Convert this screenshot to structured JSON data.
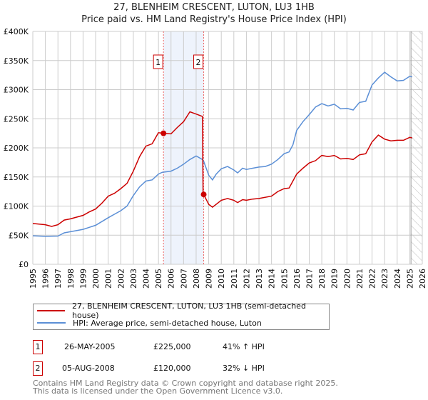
{
  "chart_data": {
    "type": "line",
    "title": "27, BLENHEIM CRESCENT, LUTON, LU3 1HB",
    "subtitle": "Price paid vs. HM Land Registry's House Price Index (HPI)",
    "xlim": [
      1995,
      2026
    ],
    "ylim": [
      0,
      400000
    ],
    "y_ticks": [
      {
        "v": 0,
        "label": "£0"
      },
      {
        "v": 50000,
        "label": "£50K"
      },
      {
        "v": 100000,
        "label": "£100K"
      },
      {
        "v": 150000,
        "label": "£150K"
      },
      {
        "v": 200000,
        "label": "£200K"
      },
      {
        "v": 250000,
        "label": "£250K"
      },
      {
        "v": 300000,
        "label": "£300K"
      },
      {
        "v": 350000,
        "label": "£350K"
      },
      {
        "v": 400000,
        "label": "£400K"
      }
    ],
    "x_ticks": [
      "1995",
      "1996",
      "1997",
      "1998",
      "1999",
      "2000",
      "2001",
      "2002",
      "2003",
      "2004",
      "2005",
      "2006",
      "2007",
      "2008",
      "2009",
      "2010",
      "2011",
      "2012",
      "2013",
      "2014",
      "2015",
      "2016",
      "2017",
      "2018",
      "2019",
      "2020",
      "2021",
      "2022",
      "2023",
      "2024",
      "2025",
      "2026"
    ],
    "grid": true,
    "shaded_range": [
      2005.4,
      2008.6
    ],
    "forecast_hatch_from": 2025.1,
    "series": [
      {
        "name": "27, BLENHEIM CRESCENT, LUTON, LU3 1HB (semi-detached house)",
        "color": "#cc0000",
        "x": [
          1995,
          1996,
          1996.5,
          1997,
          1997.5,
          1998,
          1999,
          1999.5,
          2000,
          2000.5,
          2001,
          2001.5,
          2002,
          2002.5,
          2003,
          2003.5,
          2004,
          2004.5,
          2005,
          2005.4,
          2006,
          2006.5,
          2007,
          2007.5,
          2008,
          2008.5,
          2008.55,
          2008.6,
          2009,
          2009.3,
          2010,
          2010.5,
          2011,
          2011.3,
          2011.7,
          2012,
          2012.5,
          2013,
          2014,
          2014.5,
          2015,
          2015.4,
          2016,
          2016.5,
          2017,
          2017.5,
          2018,
          2018.5,
          2019,
          2019.5,
          2020,
          2020.5,
          2021,
          2021.5,
          2022,
          2022.5,
          2023,
          2023.5,
          2024,
          2024.5,
          2025,
          2025.2
        ],
        "y": [
          70000,
          68000,
          65000,
          68000,
          76000,
          78000,
          84000,
          90000,
          95000,
          105000,
          117000,
          122000,
          130000,
          139000,
          160000,
          185000,
          203000,
          207000,
          226000,
          225000,
          224000,
          235000,
          245000,
          262000,
          258000,
          254000,
          120000,
          120000,
          103000,
          98000,
          110000,
          113000,
          110000,
          106000,
          111000,
          110000,
          112000,
          113000,
          117000,
          125000,
          130000,
          131000,
          155000,
          165000,
          174000,
          178000,
          187000,
          185000,
          187000,
          181000,
          182000,
          180000,
          188000,
          190000,
          210000,
          222000,
          215000,
          212000,
          213000,
          213000,
          218000,
          217000
        ]
      },
      {
        "name": "HPI: Average price, semi-detached house, Luton",
        "color": "#5b8fd6",
        "x": [
          1995,
          1996,
          1997,
          1997.5,
          1998,
          1999,
          2000,
          2001,
          2001.5,
          2002,
          2002.5,
          2003,
          2003.5,
          2004,
          2004.5,
          2005,
          2005.3,
          2006,
          2006.5,
          2007,
          2007.5,
          2008,
          2008.5,
          2008.6,
          2009,
          2009.3,
          2009.6,
          2010,
          2010.5,
          2011,
          2011.3,
          2011.7,
          2012,
          2012.5,
          2013,
          2013.5,
          2014,
          2014.5,
          2015,
          2015.4,
          2015.7,
          2016,
          2016.5,
          2017,
          2017.5,
          2018,
          2018.5,
          2019,
          2019.5,
          2020,
          2020.5,
          2021,
          2021.5,
          2022,
          2022.5,
          2023,
          2023.5,
          2024,
          2024.5,
          2025,
          2025.2
        ],
        "y": [
          49000,
          48000,
          48500,
          54000,
          56000,
          60000,
          67000,
          80000,
          86000,
          92000,
          100000,
          118000,
          133000,
          143000,
          145000,
          155000,
          158000,
          160000,
          165000,
          172000,
          180000,
          186000,
          180000,
          177000,
          153000,
          145000,
          155000,
          164000,
          168000,
          162000,
          157000,
          165000,
          163000,
          165000,
          167000,
          168000,
          172000,
          180000,
          190000,
          193000,
          205000,
          230000,
          245000,
          257000,
          270000,
          276000,
          272000,
          275000,
          267000,
          268000,
          265000,
          278000,
          280000,
          308000,
          320000,
          330000,
          322000,
          315000,
          316000,
          323000,
          322000
        ]
      }
    ],
    "sales": [
      {
        "num": "1",
        "x": 2005.4,
        "y": 225000,
        "date": "26-MAY-2005",
        "price": "£225,000",
        "hpi": "41% ↑ HPI"
      },
      {
        "num": "2",
        "x": 2008.6,
        "y": 120000,
        "date": "05-AUG-2008",
        "price": "£120,000",
        "hpi": "32% ↓ HPI"
      }
    ]
  },
  "footer": {
    "line1": "Contains HM Land Registry data © Crown copyright and database right 2025.",
    "line2": "This data is licensed under the Open Government Licence v3.0."
  }
}
